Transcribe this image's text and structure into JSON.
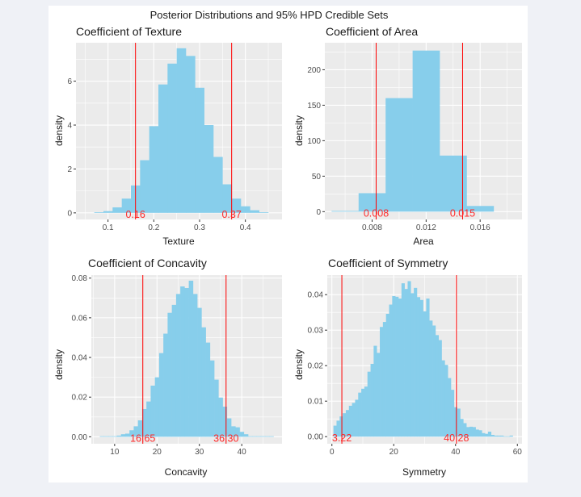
{
  "figure": {
    "title": "Posterior Distributions and 95% HPD Credible Sets",
    "background": "#ffffff",
    "panel_background": "#ebebeb",
    "grid_color": "#ffffff",
    "bar_color": "#87ceeb",
    "hpd_line_color": "#ff0000",
    "hpd_label_color": "#ff2a2a"
  },
  "chart_data": [
    {
      "type": "bar",
      "kind": "histogram",
      "title": "Coefficient of Texture",
      "xlabel": "Texture",
      "ylabel": "density",
      "xlim": [
        0.03,
        0.48
      ],
      "ylim": [
        -0.3,
        7.75
      ],
      "xticks": [
        0.1,
        0.2,
        0.3,
        0.4
      ],
      "xtick_labels": [
        "0.1",
        "0.2",
        "0.3",
        "0.4"
      ],
      "yticks": [
        0,
        2,
        4,
        6
      ],
      "ytick_labels": [
        "0",
        "2",
        "4",
        "6"
      ],
      "bin_width": 0.02,
      "bin_start": 0.07,
      "values": [
        0.03,
        0.08,
        0.25,
        0.65,
        1.25,
        2.4,
        3.95,
        5.85,
        6.8,
        7.5,
        7.15,
        5.7,
        4.0,
        2.55,
        1.3,
        0.65,
        0.3,
        0.12,
        0.03
      ],
      "hpd": [
        0.16,
        0.37
      ],
      "hpd_labels": [
        "0.16",
        "0.37"
      ],
      "grid": true
    },
    {
      "type": "bar",
      "kind": "histogram",
      "title": "Coefficient of Area",
      "xlabel": "Area",
      "ylabel": "density",
      "xlim": [
        0.0045,
        0.0191
      ],
      "ylim": [
        -11,
        238
      ],
      "xticks": [
        0.008,
        0.012,
        0.016
      ],
      "xtick_labels": [
        "0.008",
        "0.012",
        "0.016"
      ],
      "yticks": [
        0,
        50,
        100,
        150,
        200
      ],
      "ytick_labels": [
        "0",
        "50",
        "100",
        "150",
        "200"
      ],
      "bin_width": 0.002,
      "bin_start": 0.005,
      "values": [
        1,
        26,
        160,
        227,
        79,
        8
      ],
      "hpd": [
        0.0083,
        0.0147
      ],
      "hpd_labels": [
        "0.008",
        "0.015"
      ],
      "grid": true
    },
    {
      "type": "bar",
      "kind": "histogram",
      "title": "Coefficient of Concavity",
      "xlabel": "Concavity",
      "ylabel": "density",
      "xlim": [
        4.5,
        49.5
      ],
      "ylim": [
        -0.0035,
        0.0815
      ],
      "xticks": [
        10,
        20,
        30,
        40
      ],
      "xtick_labels": [
        "10",
        "20",
        "30",
        "40"
      ],
      "yticks": [
        0,
        0.02,
        0.04,
        0.06,
        0.08
      ],
      "ytick_labels": [
        "0.00",
        "0.02",
        "0.04",
        "0.06",
        "0.08"
      ],
      "bin_width": 1,
      "bin_start": 6.5,
      "values": [
        0.0003,
        0.0003,
        0.0003,
        0.0003,
        0.0006,
        0.0013,
        0.0016,
        0.0033,
        0.0053,
        0.0083,
        0.014,
        0.0178,
        0.0258,
        0.03,
        0.0422,
        0.052,
        0.0625,
        0.0665,
        0.072,
        0.0758,
        0.075,
        0.0787,
        0.072,
        0.065,
        0.0552,
        0.0475,
        0.0385,
        0.0288,
        0.0198,
        0.0152,
        0.0093,
        0.0053,
        0.0048,
        0.0025,
        0.0013,
        0.0003,
        0.0003,
        0.0003,
        0.0003,
        0.0003,
        0.0003
      ],
      "hpd": [
        16.65,
        36.3
      ],
      "hpd_labels": [
        "16.65",
        "36.30"
      ],
      "grid": true
    },
    {
      "type": "bar",
      "kind": "histogram",
      "title": "Coefficient of Symmetry",
      "xlabel": "Symmetry",
      "ylabel": "density",
      "xlim": [
        -1.5,
        61.5
      ],
      "ylim": [
        -0.002,
        0.0455
      ],
      "xticks": [
        0,
        20,
        40,
        60
      ],
      "xtick_labels": [
        "0",
        "20",
        "40",
        "60"
      ],
      "yticks": [
        0,
        0.01,
        0.02,
        0.03,
        0.04
      ],
      "ytick_labels": [
        "0.00",
        "0.01",
        "0.02",
        "0.03",
        "0.04"
      ],
      "bin_width": 1,
      "bin_start": 0.5,
      "values": [
        0.0031,
        0.0045,
        0.0057,
        0.0066,
        0.0075,
        0.0087,
        0.0095,
        0.0104,
        0.0124,
        0.0135,
        0.0141,
        0.0183,
        0.0205,
        0.0256,
        0.0236,
        0.0309,
        0.0323,
        0.0346,
        0.0372,
        0.0396,
        0.0394,
        0.0389,
        0.0432,
        0.0416,
        0.0438,
        0.0404,
        0.0419,
        0.0393,
        0.0385,
        0.0353,
        0.0389,
        0.0327,
        0.0313,
        0.0286,
        0.0272,
        0.0215,
        0.0202,
        0.0165,
        0.0132,
        0.0083,
        0.0079,
        0.005,
        0.0038,
        0.0027,
        0.0028,
        0.0027,
        0.002,
        0.0018,
        0.001,
        0.0008,
        0.0014,
        0.0005,
        0.0003,
        0.0003,
        0.0003,
        0.0001,
        0.0001,
        0.0003
      ],
      "hpd": [
        3.22,
        40.28
      ],
      "hpd_labels": [
        "3.22",
        "40.28"
      ],
      "grid": true
    }
  ]
}
